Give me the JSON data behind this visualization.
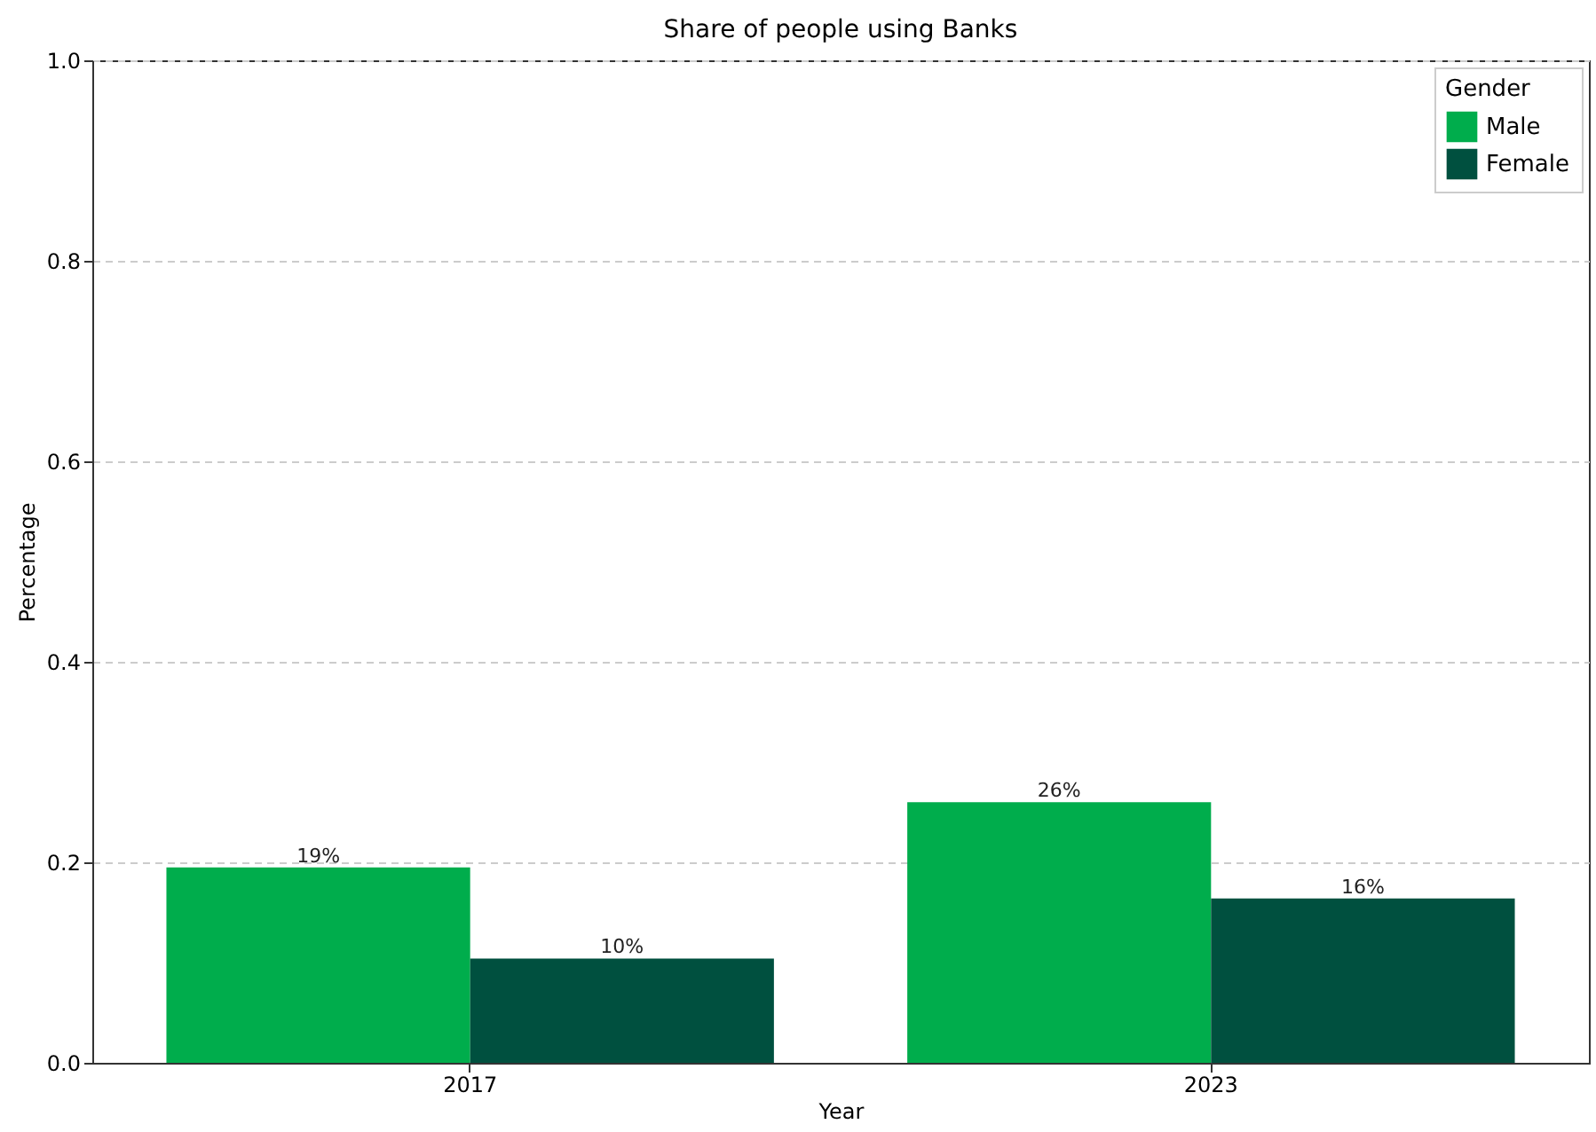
{
  "chart_data": {
    "type": "bar",
    "title": "Share of people using Banks",
    "xlabel": "Year",
    "ylabel": "Percentage",
    "legend_title": "Gender",
    "categories": [
      "2017",
      "2023"
    ],
    "series": [
      {
        "name": "Male",
        "color": "#00ad4c",
        "values": [
          0.195,
          0.26
        ],
        "value_labels": [
          "19%",
          "26%"
        ]
      },
      {
        "name": "Female",
        "color": "#00503f",
        "values": [
          0.104,
          0.164
        ],
        "value_labels": [
          "10%",
          "16%"
        ]
      }
    ],
    "ylim": [
      0,
      1
    ],
    "yticks": [
      {
        "value": 0,
        "label": "0.0"
      },
      {
        "value": 0.2,
        "label": "0.2"
      },
      {
        "value": 0.4,
        "label": "0.4"
      },
      {
        "value": 0.6,
        "label": "0.6"
      },
      {
        "value": 0.8,
        "label": "0.8"
      },
      {
        "value": 1,
        "label": "1.0"
      }
    ],
    "grid": "y",
    "legend": "top right"
  }
}
